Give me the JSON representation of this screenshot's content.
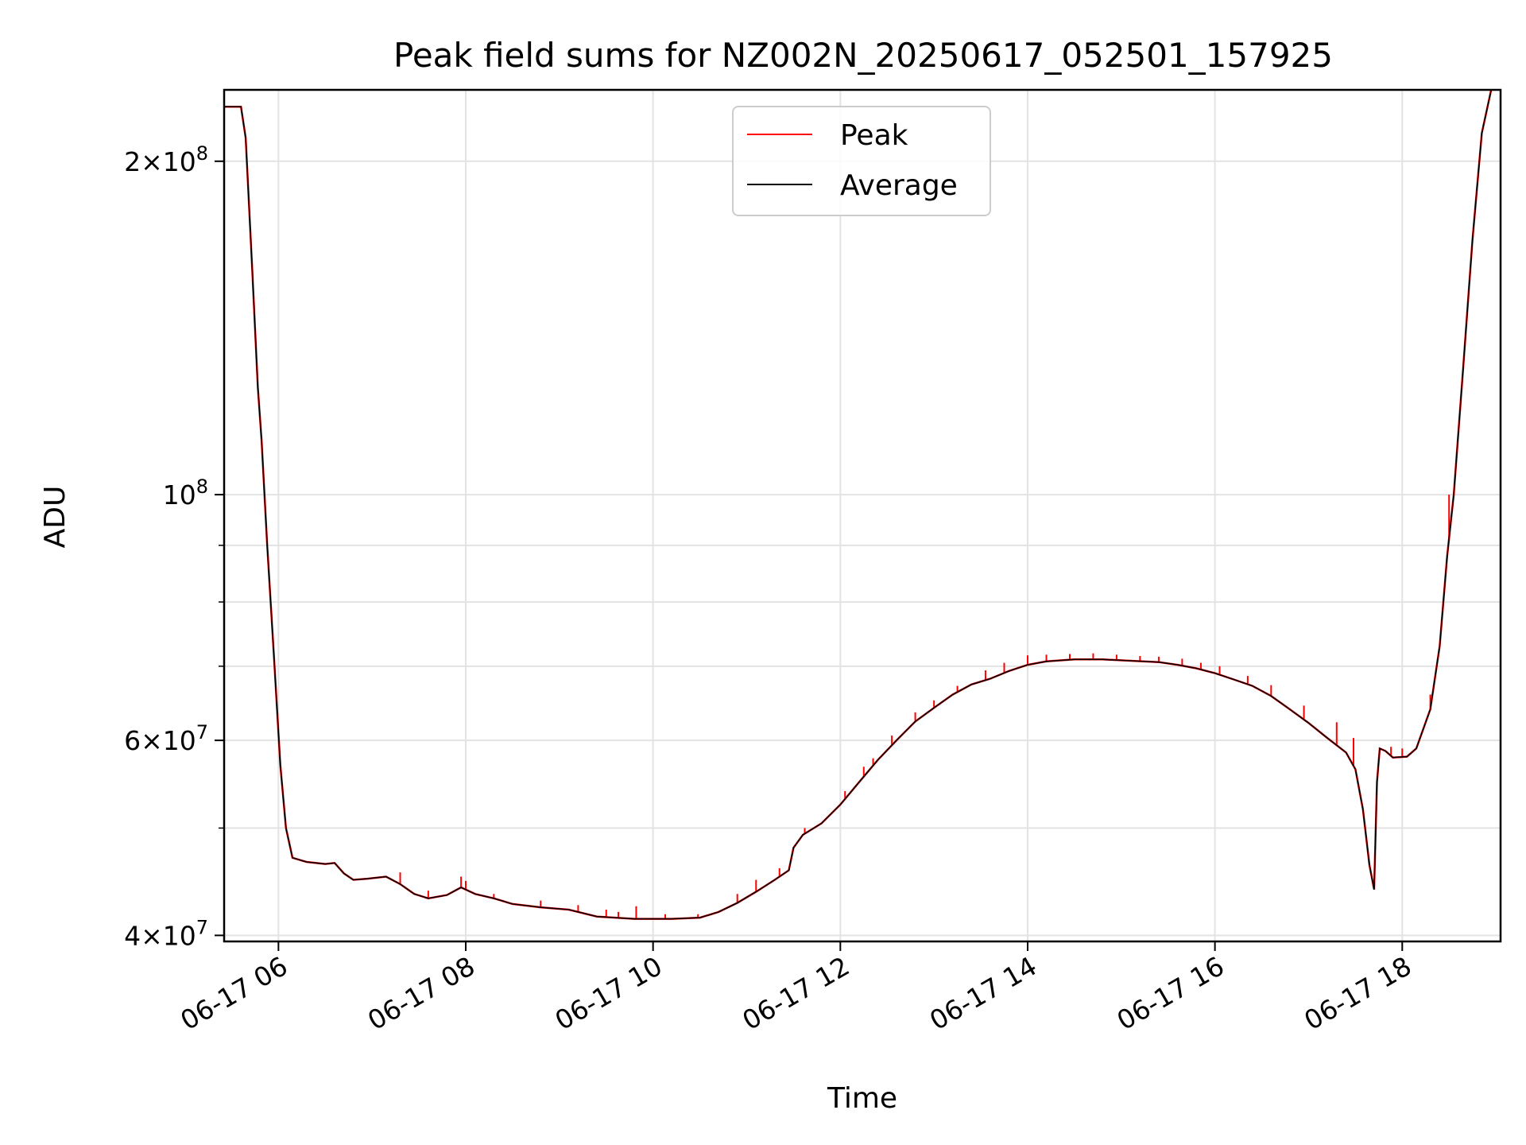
{
  "chart_data": {
    "type": "line",
    "title": "Peak field sums for NZ002N_20250617_052501_157925",
    "xlabel": "Time",
    "ylabel": "ADU",
    "x_units": "hours on 2025-06-17",
    "xlim": [
      5.42,
      19.05
    ],
    "ylim": [
      39500000,
      232000000
    ],
    "yscale": "log",
    "x_tick_labels": [
      "06-17 06",
      "06-17 08",
      "06-17 10",
      "06-17 12",
      "06-17 14",
      "06-17 16",
      "06-17 18"
    ],
    "x_ticks": [
      6,
      8,
      10,
      12,
      14,
      16,
      18
    ],
    "y_major_ticks": [
      {
        "value": 40000000,
        "mantissa": "4",
        "exp": "7"
      },
      {
        "value": 60000000,
        "mantissa": "6",
        "exp": "7"
      },
      {
        "value": 100000000,
        "mantissa": "",
        "exp": "8"
      },
      {
        "value": 200000000,
        "mantissa": "2",
        "exp": "8"
      }
    ],
    "y_minor_ticks": [
      50000000,
      70000000,
      80000000,
      90000000
    ],
    "grid": true,
    "legend_position": "upper-center",
    "series": [
      {
        "name": "Average",
        "color": "#000000",
        "points": [
          [
            5.42,
            224000000
          ],
          [
            5.6,
            224000000
          ],
          [
            5.65,
            210000000
          ],
          [
            5.72,
            160000000
          ],
          [
            5.78,
            125000000
          ],
          [
            5.82,
            112000000
          ],
          [
            5.88,
            90000000
          ],
          [
            5.95,
            72000000
          ],
          [
            6.02,
            57000000
          ],
          [
            6.08,
            50000000
          ],
          [
            6.15,
            47000000
          ],
          [
            6.3,
            46600000
          ],
          [
            6.5,
            46400000
          ],
          [
            6.6,
            46500000
          ],
          [
            6.7,
            45500000
          ],
          [
            6.8,
            44900000
          ],
          [
            6.95,
            45000000
          ],
          [
            7.15,
            45200000
          ],
          [
            7.3,
            44500000
          ],
          [
            7.45,
            43600000
          ],
          [
            7.6,
            43200000
          ],
          [
            7.8,
            43500000
          ],
          [
            7.95,
            44200000
          ],
          [
            8.1,
            43600000
          ],
          [
            8.3,
            43200000
          ],
          [
            8.5,
            42700000
          ],
          [
            8.8,
            42400000
          ],
          [
            9.1,
            42200000
          ],
          [
            9.4,
            41600000
          ],
          [
            9.8,
            41400000
          ],
          [
            10.2,
            41400000
          ],
          [
            10.5,
            41500000
          ],
          [
            10.7,
            42000000
          ],
          [
            10.9,
            42800000
          ],
          [
            11.1,
            43800000
          ],
          [
            11.3,
            44900000
          ],
          [
            11.45,
            45800000
          ],
          [
            11.5,
            48000000
          ],
          [
            11.6,
            49300000
          ],
          [
            11.8,
            50500000
          ],
          [
            12.0,
            52500000
          ],
          [
            12.2,
            55000000
          ],
          [
            12.4,
            57600000
          ],
          [
            12.6,
            60000000
          ],
          [
            12.8,
            62400000
          ],
          [
            13.0,
            64200000
          ],
          [
            13.2,
            66000000
          ],
          [
            13.4,
            67400000
          ],
          [
            13.6,
            68200000
          ],
          [
            13.8,
            69300000
          ],
          [
            14.0,
            70200000
          ],
          [
            14.2,
            70700000
          ],
          [
            14.5,
            71000000
          ],
          [
            14.8,
            71000000
          ],
          [
            15.1,
            70800000
          ],
          [
            15.4,
            70600000
          ],
          [
            15.6,
            70200000
          ],
          [
            15.8,
            69700000
          ],
          [
            16.0,
            69000000
          ],
          [
            16.2,
            68100000
          ],
          [
            16.4,
            67200000
          ],
          [
            16.6,
            65800000
          ],
          [
            16.8,
            64000000
          ],
          [
            17.0,
            62200000
          ],
          [
            17.2,
            60300000
          ],
          [
            17.4,
            58500000
          ],
          [
            17.5,
            56500000
          ],
          [
            17.58,
            52000000
          ],
          [
            17.65,
            46300000
          ],
          [
            17.7,
            44000000
          ],
          [
            17.73,
            55000000
          ],
          [
            17.76,
            59000000
          ],
          [
            17.82,
            58700000
          ],
          [
            17.9,
            57900000
          ],
          [
            18.05,
            58000000
          ],
          [
            18.15,
            59000000
          ],
          [
            18.3,
            64000000
          ],
          [
            18.4,
            73000000
          ],
          [
            18.48,
            88000000
          ],
          [
            18.55,
            100000000
          ],
          [
            18.65,
            130000000
          ],
          [
            18.75,
            170000000
          ],
          [
            18.85,
            212000000
          ],
          [
            18.95,
            232000000
          ]
        ]
      },
      {
        "name": "Peak",
        "color": "#ff0000",
        "spikes": [
          [
            7.3,
            45600000
          ],
          [
            7.6,
            43900000
          ],
          [
            7.95,
            45200000
          ],
          [
            8.0,
            44800000
          ],
          [
            8.3,
            43600000
          ],
          [
            8.8,
            43000000
          ],
          [
            9.2,
            42600000
          ],
          [
            9.5,
            42200000
          ],
          [
            9.63,
            42000000
          ],
          [
            9.82,
            42500000
          ],
          [
            10.13,
            41800000
          ],
          [
            10.48,
            41800000
          ],
          [
            10.9,
            43600000
          ],
          [
            11.1,
            44900000
          ],
          [
            11.35,
            46000000
          ],
          [
            11.62,
            50000000
          ],
          [
            12.05,
            54000000
          ],
          [
            12.25,
            56800000
          ],
          [
            12.35,
            57800000
          ],
          [
            12.55,
            60600000
          ],
          [
            12.8,
            63600000
          ],
          [
            13.0,
            65200000
          ],
          [
            13.25,
            67200000
          ],
          [
            13.55,
            69400000
          ],
          [
            13.75,
            70500000
          ],
          [
            14.0,
            71600000
          ],
          [
            14.2,
            71700000
          ],
          [
            14.45,
            71800000
          ],
          [
            14.7,
            71900000
          ],
          [
            14.95,
            71700000
          ],
          [
            15.2,
            71500000
          ],
          [
            15.4,
            71400000
          ],
          [
            15.65,
            71100000
          ],
          [
            15.85,
            70500000
          ],
          [
            16.05,
            70000000
          ],
          [
            16.35,
            68600000
          ],
          [
            16.6,
            67300000
          ],
          [
            16.95,
            64500000
          ],
          [
            17.3,
            62300000
          ],
          [
            17.48,
            60300000
          ],
          [
            17.88,
            59200000
          ],
          [
            18.0,
            59000000
          ],
          [
            18.3,
            66000000
          ],
          [
            18.5,
            100000000
          ]
        ]
      }
    ]
  }
}
